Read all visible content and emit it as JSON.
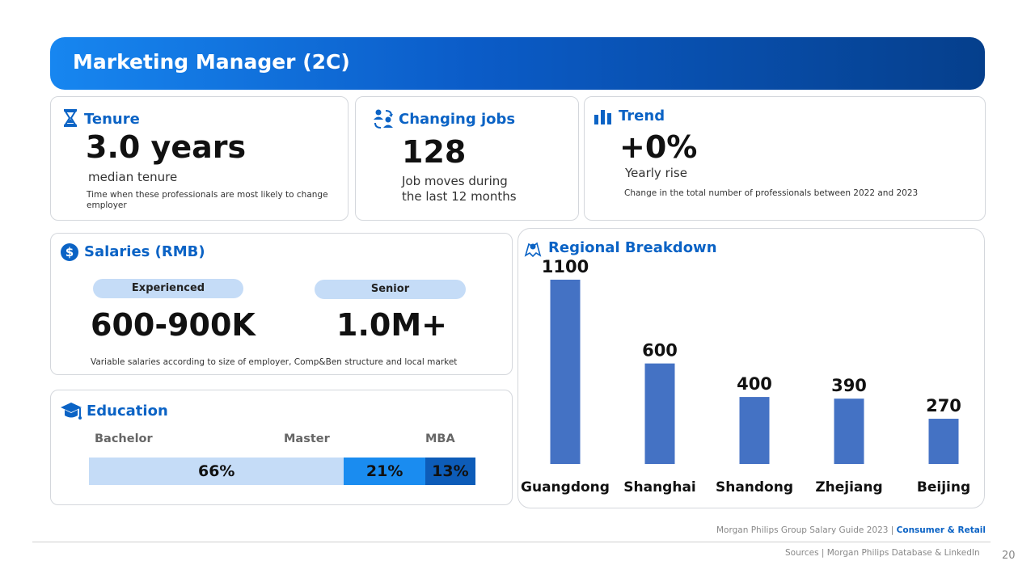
{
  "header": {
    "title": "Marketing Manager (2C)"
  },
  "tenure": {
    "title": "Tenure",
    "value": "3.0 years",
    "subtitle": "median tenure",
    "note": "Time when these professionals are most likely to  change employer"
  },
  "changing_jobs": {
    "title": "Changing jobs",
    "value": "128",
    "line1": "Job moves during",
    "line2": "the last 12 months"
  },
  "trend": {
    "title": "Trend",
    "value": "+0%",
    "subtitle": "Yearly rise",
    "note": "Change in the total number of professionals between 2022 and 2023"
  },
  "salaries": {
    "title": "Salaries (RMB)",
    "experienced_label": "Experienced",
    "experienced_value": "600-900K",
    "senior_label": "Senior",
    "senior_value": "1.0M+",
    "note": "Variable salaries according to size of employer, Comp&Ben structure and local market"
  },
  "education": {
    "title": "Education",
    "segments": [
      {
        "label": "Bachelor",
        "value": "66%",
        "share": 66,
        "color": "#c5dcf7"
      },
      {
        "label": "Master",
        "value": "21%",
        "share": 21,
        "color": "#1a8cf0"
      },
      {
        "label": "MBA",
        "value": "13%",
        "share": 13,
        "color": "#0d5cb8"
      }
    ]
  },
  "regional": {
    "title": "Regional Breakdown"
  },
  "chart_data": {
    "type": "bar",
    "title": "Regional Breakdown",
    "categories": [
      "Guangdong",
      "Shanghai",
      "Shandong",
      "Zhejiang",
      "Beijing"
    ],
    "values": [
      1100,
      600,
      400,
      390,
      270
    ],
    "value_labels": [
      "1100",
      "600",
      "400",
      "390",
      "270"
    ],
    "ylim": [
      0,
      1100
    ],
    "bar_color": "#4472c4",
    "xlabel": "",
    "ylabel": "",
    "grid": false,
    "legend": "none"
  },
  "footer": {
    "guide": "Morgan Philips Group Salary Guide 2023 |",
    "sector": "Consumer & Retail",
    "sources": "Sources | Morgan Philips Database & LinkedIn",
    "page": "20"
  }
}
